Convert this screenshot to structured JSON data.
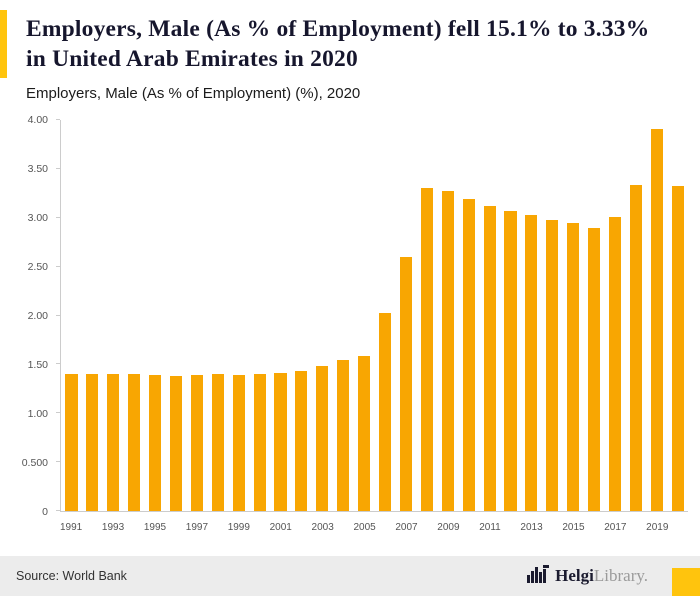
{
  "header": {
    "title": "Employers, Male (As % of Employment) fell 15.1% to 3.33% in United Arab Emirates in 2020",
    "subtitle": "Employers, Male (As % of Employment) (%), 2020"
  },
  "footer": {
    "source": "Source: World Bank",
    "logo_bold": "Helgi",
    "logo_light": "Library."
  },
  "colors": {
    "bar": "#F8A602",
    "accent": "#FFC40D",
    "axis": "#cccccc",
    "title_text": "#16162d",
    "footer_bg": "#ececec"
  },
  "icons": {
    "logo_icon": "helgilibrary-bars-icon"
  },
  "chart_data": {
    "type": "bar",
    "title": "Employers, Male (As % of Employment) fell 15.1% to 3.33% in United Arab Emirates in 2020",
    "subtitle": "Employers, Male (As % of Employment) (%), 2020",
    "xlabel": "",
    "ylabel": "",
    "ylim": [
      0,
      4
    ],
    "grid": false,
    "legend": "none",
    "bar_color": "#F8A602",
    "categories": [
      1991,
      1992,
      1993,
      1994,
      1995,
      1996,
      1997,
      1998,
      1999,
      2000,
      2001,
      2002,
      2003,
      2004,
      2005,
      2006,
      2007,
      2008,
      2009,
      2010,
      2011,
      2012,
      2013,
      2014,
      2015,
      2016,
      2017,
      2018,
      2019,
      2020
    ],
    "values": [
      1.4,
      1.4,
      1.4,
      1.4,
      1.39,
      1.38,
      1.39,
      1.4,
      1.39,
      1.4,
      1.41,
      1.43,
      1.48,
      1.54,
      1.59,
      2.03,
      2.6,
      3.3,
      3.27,
      3.19,
      3.12,
      3.07,
      3.03,
      2.98,
      2.95,
      2.9,
      3.01,
      3.34,
      3.91,
      3.33
    ],
    "y_ticks": [
      {
        "label": "4.00",
        "value": 4.0
      },
      {
        "label": "3.50",
        "value": 3.5
      },
      {
        "label": "3.00",
        "value": 3.0
      },
      {
        "label": "2.50",
        "value": 2.5
      },
      {
        "label": "2.00",
        "value": 2.0
      },
      {
        "label": "1.50",
        "value": 1.5
      },
      {
        "label": "1.00",
        "value": 1.0
      },
      {
        "label": "0.500",
        "value": 0.5
      },
      {
        "label": "0",
        "value": 0.0
      }
    ],
    "x_tick_labels": [
      "1991",
      "1993",
      "1995",
      "1997",
      "1999",
      "2001",
      "2003",
      "2005",
      "2007",
      "2009",
      "2011",
      "2013",
      "2015",
      "2017",
      "2019"
    ]
  }
}
